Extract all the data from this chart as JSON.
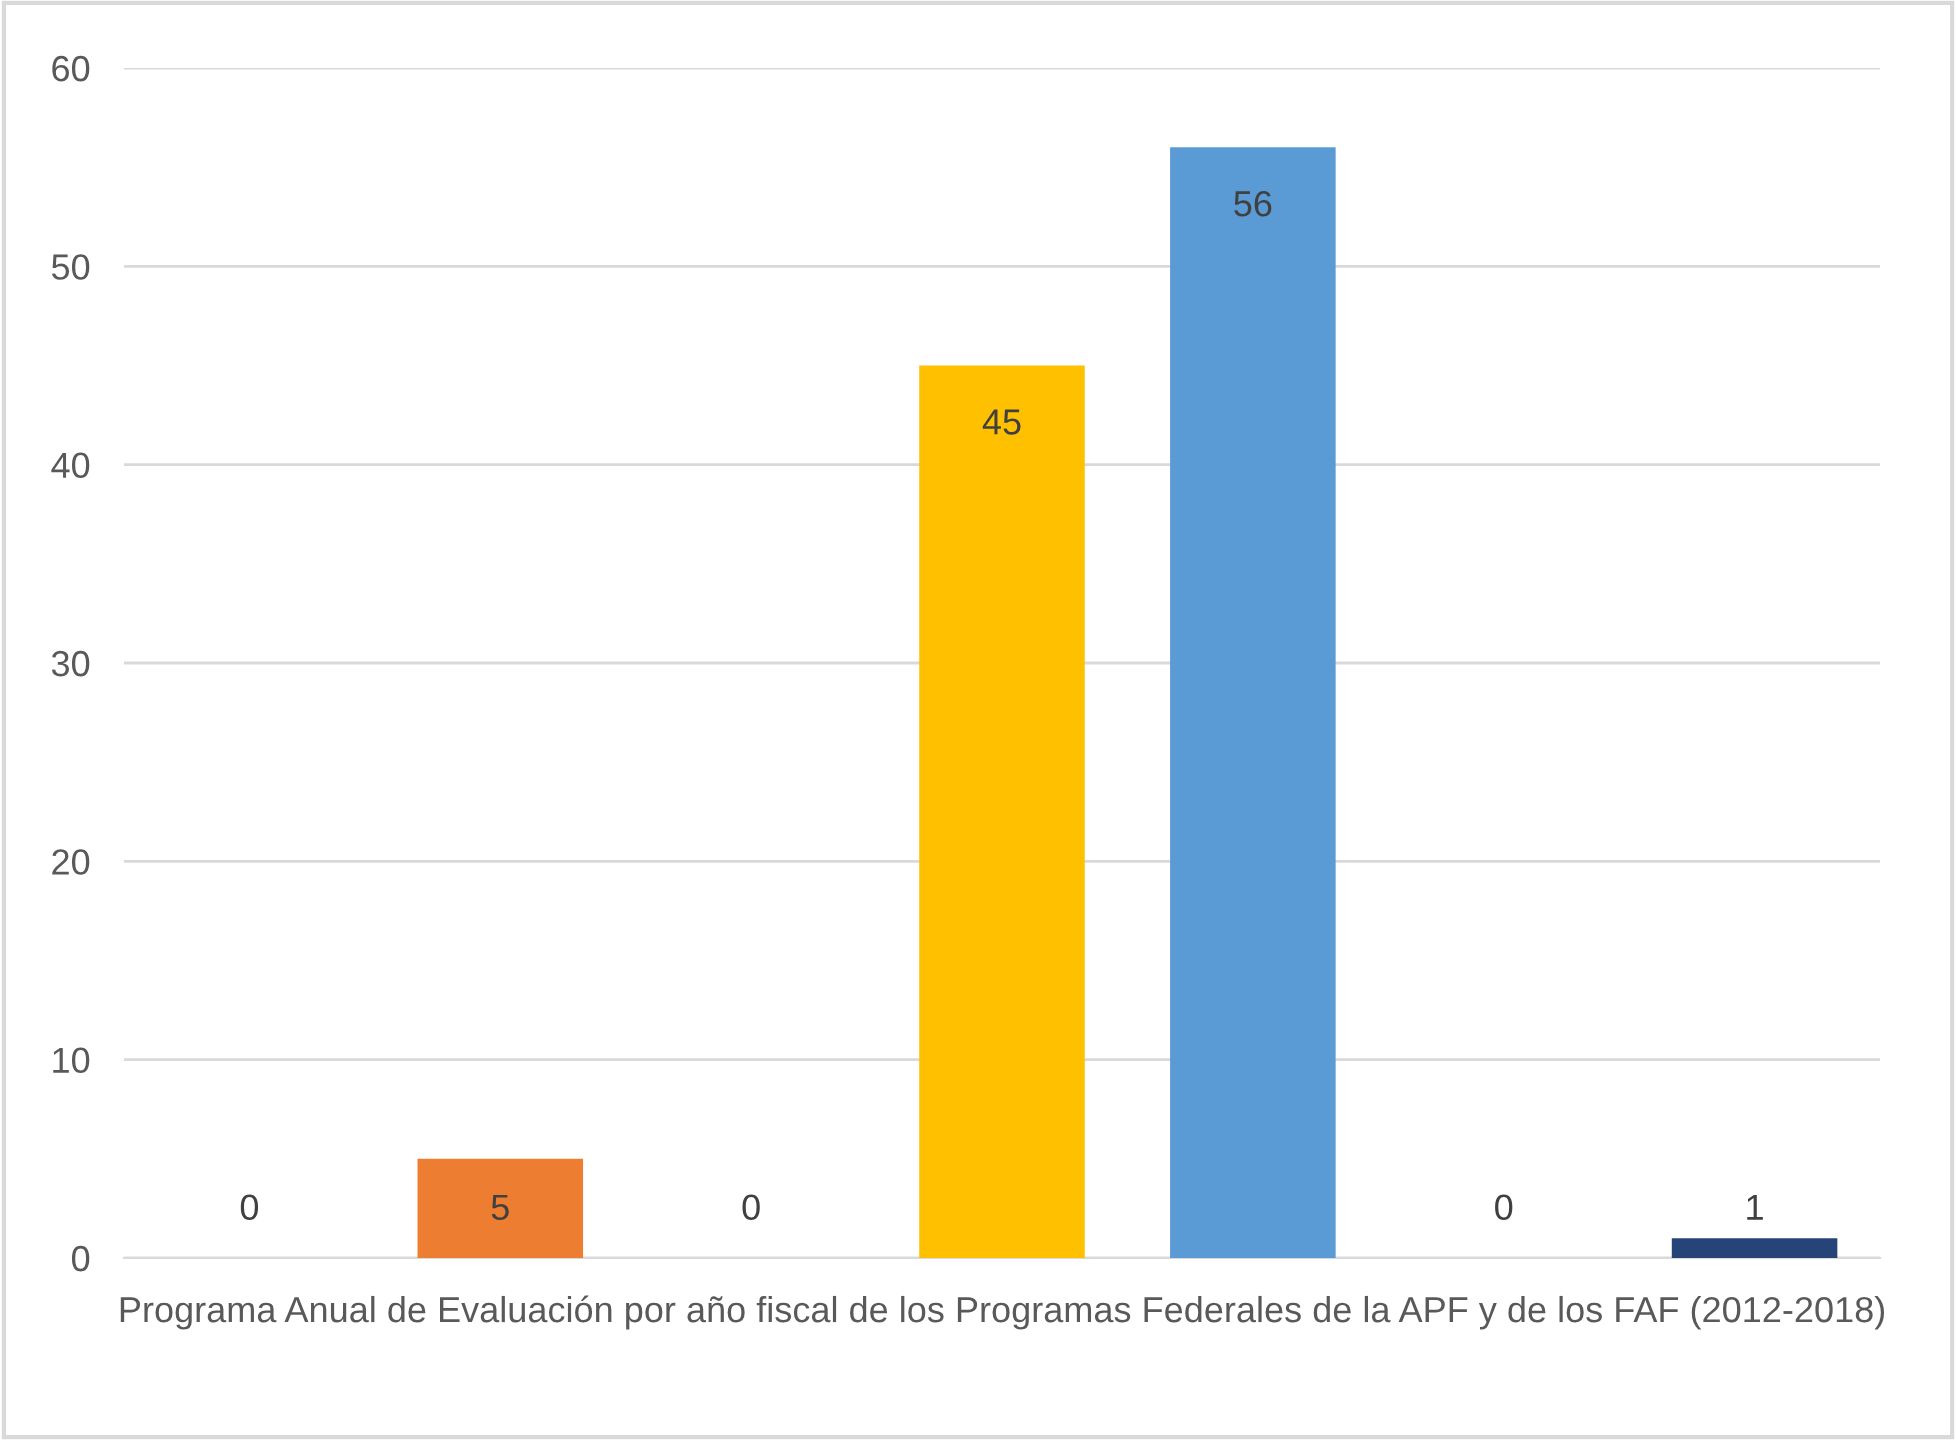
{
  "chart_data": {
    "type": "bar",
    "xlabel": "Programa Anual de Evaluación por año fiscal de los Programas Federales de la APF y de los FAF (2012-2018)",
    "categories": [
      null,
      null,
      null,
      null,
      null,
      null,
      null
    ],
    "values": [
      0,
      5,
      0,
      45,
      56,
      0,
      1
    ],
    "colors": [
      "#4472c4",
      "#ed7d31",
      "#a5a5a5",
      "#ffc000",
      "#5b9bd5",
      "#70ad47",
      "#264478"
    ],
    "ylim": [
      0,
      60
    ],
    "yticks": [
      0,
      10,
      20,
      30,
      40,
      50,
      60
    ],
    "grid": "y",
    "data_labels": true,
    "legend": false
  }
}
